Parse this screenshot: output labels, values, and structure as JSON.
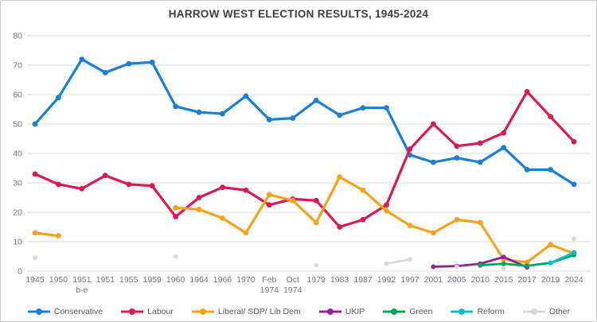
{
  "chart_data": {
    "type": "line",
    "title": "HARROW WEST ELECTION RESULTS, 1945-2024",
    "categories": [
      "1945",
      "1950",
      "1951 b-e",
      "1951",
      "1955",
      "1959",
      "1960",
      "1964",
      "1966",
      "1970",
      "Feb 1974",
      "Oct 1974",
      "1979",
      "1983",
      "1987",
      "1992",
      "1997",
      "2001",
      "2005",
      "2010",
      "2015",
      "2017",
      "2019",
      "2024"
    ],
    "yticks": [
      0,
      10,
      20,
      30,
      40,
      50,
      60,
      70,
      80
    ],
    "ylim": [
      0,
      80
    ],
    "grid": "horizontal",
    "legend_position": "bottom",
    "layout": {
      "wrap_indices": [
        2,
        10,
        11
      ]
    },
    "colors": {
      "gridline": "#dcdcdc",
      "axis_text": "#757575",
      "title_text": "#3f3f3f",
      "legend_text": "#595959"
    },
    "series": [
      {
        "name": "Conservative",
        "color": "#1980D4",
        "width": 3.2,
        "marker": 3.4,
        "values": [
          50,
          59,
          72,
          67.5,
          70.5,
          71,
          56,
          54,
          53.5,
          59.5,
          51.5,
          52,
          58,
          53,
          55.5,
          55.5,
          39.5,
          37,
          38.5,
          37,
          42,
          34.5,
          34.5,
          29.5
        ]
      },
      {
        "name": "Labour",
        "color": "#DC1950",
        "width": 3.2,
        "marker": 3.4,
        "values": [
          33,
          29.5,
          28,
          32.5,
          29.5,
          29,
          18.5,
          25,
          28.5,
          27.5,
          22.5,
          24.5,
          24,
          15,
          17.5,
          22.5,
          41.5,
          50,
          42.5,
          43.5,
          47,
          61,
          52.5,
          44
        ]
      },
      {
        "name": "Liberal/ SDP/ Lib Dem",
        "color": "#F5A31C",
        "width": 3.2,
        "marker": 3.4,
        "values": [
          13,
          12,
          null,
          null,
          null,
          null,
          21.5,
          21,
          18,
          13,
          26,
          24,
          16.5,
          32,
          27.5,
          20.5,
          15.5,
          13,
          17.5,
          16.5,
          4,
          3,
          9,
          6
        ]
      },
      {
        "name": "UKIP",
        "color": "#93239B",
        "width": 2.8,
        "marker": 3,
        "values": [
          null,
          null,
          null,
          null,
          null,
          null,
          null,
          null,
          null,
          null,
          null,
          null,
          null,
          null,
          null,
          null,
          null,
          1.5,
          1.7,
          2.5,
          4.8,
          1.3,
          null,
          null
        ]
      },
      {
        "name": "Green",
        "color": "#00A45A",
        "width": 2.8,
        "marker": 3,
        "values": [
          null,
          null,
          null,
          null,
          null,
          null,
          null,
          null,
          null,
          null,
          null,
          null,
          null,
          null,
          null,
          null,
          null,
          null,
          null,
          2,
          2.5,
          1.8,
          2.8,
          5.5
        ]
      },
      {
        "name": "Reform",
        "color": "#17B9CE",
        "width": 2.8,
        "marker": 3.2,
        "values": [
          null,
          null,
          null,
          null,
          null,
          null,
          null,
          null,
          null,
          null,
          null,
          null,
          null,
          null,
          null,
          null,
          null,
          null,
          null,
          null,
          null,
          null,
          2.8,
          6.3
        ]
      },
      {
        "name": "Other",
        "color": "#D8D8D8",
        "width": 2.5,
        "marker": 2.9,
        "values": [
          4.5,
          null,
          null,
          null,
          null,
          null,
          5,
          null,
          null,
          null,
          null,
          null,
          2,
          null,
          null,
          2.5,
          4,
          null,
          1.5,
          null,
          1,
          null,
          null,
          11
        ]
      }
    ]
  }
}
